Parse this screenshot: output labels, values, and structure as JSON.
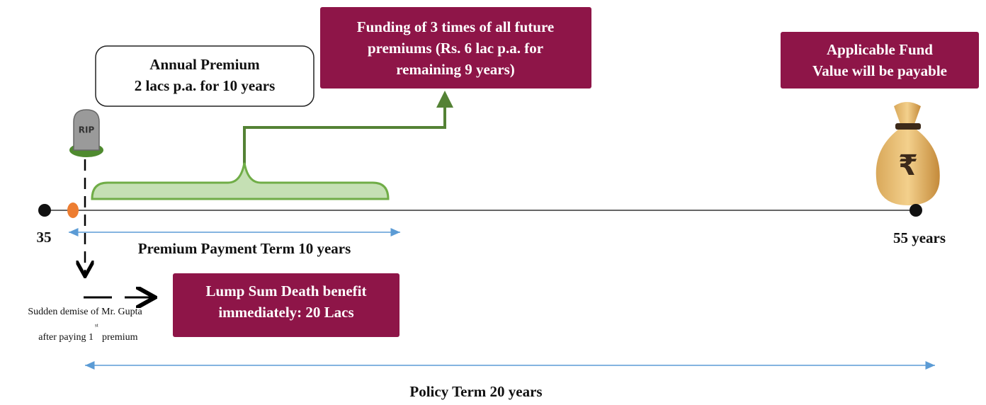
{
  "premium_box": {
    "lines": [
      "Annual Premium",
      "2 lacs p.a. for 10 years"
    ]
  },
  "funding_box": {
    "lines": [
      "Funding of 3 times of all future",
      "premiums (Rs. 6 lac p.a. for",
      "remaining 9 years)"
    ]
  },
  "fund_box": {
    "lines": [
      "Applicable Fund",
      "Value will be payable"
    ]
  },
  "death_box": {
    "lines": [
      "Lump Sum Death benefit",
      "immediately: 20 Lacs"
    ]
  },
  "timeline": {
    "start_label": "35",
    "end_label": "55 years",
    "premium_term": "Premium Payment Term 10 years",
    "policy_term": "Policy Term 20 years"
  },
  "demise_note": {
    "line1": "Sudden demise of Mr. Gupta",
    "line2_start": "after paying 1",
    "line2_sup": "st",
    "line2_end": "premium"
  },
  "tombstone": {
    "label": "RIP"
  },
  "money_bag": {
    "symbol": "₹"
  }
}
